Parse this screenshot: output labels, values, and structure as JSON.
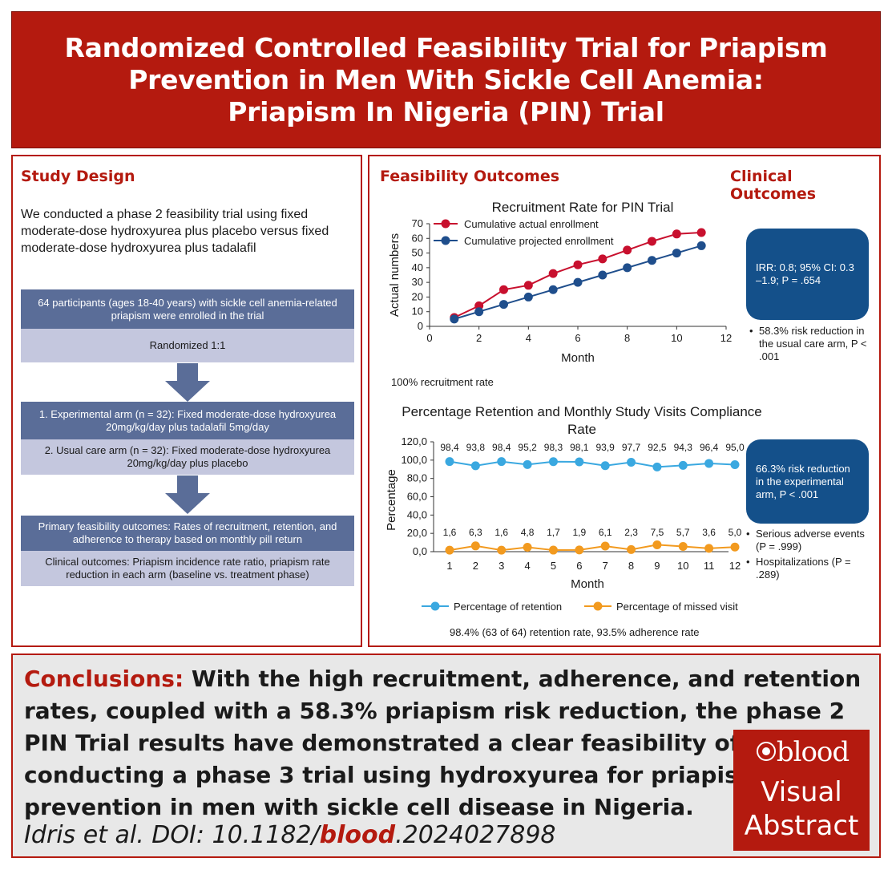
{
  "title": {
    "line1": "Randomized Controlled Feasibility Trial for Priapism",
    "line2": "Prevention in Men With Sickle Cell Anemia:",
    "line3": "Priapism In Nigeria (PIN) Trial"
  },
  "study_design": {
    "heading": "Study Design",
    "description": "We conducted a phase 2 feasibility trial using fixed moderate-dose hydroxyurea plus placebo versus fixed moderate-dose hydroxyurea plus tadalafil",
    "box_participants": "64 participants (ages 18-40 years) with sickle cell anemia-related priapism were enrolled in the trial",
    "box_randomized": "Randomized 1:1",
    "box_experimental": "1. Experimental arm (n = 32): Fixed moderate-dose hydroxyurea 20mg/kg/day plus tadalafil 5mg/day",
    "box_usual": "2. Usual care arm (n = 32): Fixed moderate-dose hydroxyurea 20mg/kg/day plus placebo",
    "box_primary": "Primary feasibility outcomes: Rates of recruitment, retention, and adherence to therapy based on monthly pill return",
    "box_clinical": "Clinical outcomes: Priapism incidence rate ratio, priapism rate reduction in each arm (baseline vs. treatment phase)"
  },
  "outcomes": {
    "feasibility_heading": "Feasibility Outcomes",
    "clinical_heading": "Clinical Outcomes",
    "recruitment_note": "100% recruitment rate",
    "retention_note": "98.4% (63 of 64) retention rate, 93.5% adherence rate",
    "callout1": "IRR: 0.8; 95% CI: 0.3 –1.9; P = .654",
    "bullets1": [
      "58.3% risk reduction in the usual care arm, P < .001"
    ],
    "callout2": "66.3% risk reduction in the experimental arm, P < .001",
    "bullets2": [
      "Serious adverse events (P = .999)",
      "Hospitalizations (P = .289)"
    ]
  },
  "chart_data": [
    {
      "type": "line",
      "title": "Recruitment Rate for PIN Trial",
      "xlabel": "Month",
      "ylabel": "Actual numbers",
      "xlim": [
        0,
        12
      ],
      "ylim": [
        0,
        70
      ],
      "xticks": [
        0,
        2,
        4,
        6,
        8,
        10,
        12
      ],
      "yticks": [
        0,
        10,
        20,
        30,
        40,
        50,
        60,
        70
      ],
      "legend_position": "top-left",
      "series": [
        {
          "name": "Cumulative actual enrollment",
          "color": "#c8102e",
          "x": [
            1,
            2,
            3,
            4,
            5,
            6,
            7,
            8,
            9,
            10,
            11
          ],
          "values": [
            6,
            14,
            25,
            28,
            36,
            42,
            46,
            52,
            58,
            63,
            64
          ]
        },
        {
          "name": "Cumulative projected enrollment",
          "color": "#1f4e8c",
          "x": [
            1,
            2,
            3,
            4,
            5,
            6,
            7,
            8,
            9,
            10,
            11
          ],
          "values": [
            5,
            10,
            15,
            20,
            25,
            30,
            35,
            40,
            45,
            50,
            55
          ]
        }
      ]
    },
    {
      "type": "line",
      "title": "Percentage Retention and Monthly Study Visits Compliance Rate",
      "xlabel": "Month",
      "ylabel": "Percentage",
      "categories": [
        "1",
        "2",
        "3",
        "4",
        "5",
        "6",
        "7",
        "8",
        "9",
        "10",
        "11",
        "12"
      ],
      "ylim": [
        0,
        120
      ],
      "yticks": [
        "0,0",
        "20,0",
        "40,0",
        "60,0",
        "80,0",
        "100,0",
        "120,0"
      ],
      "legend_position": "bottom",
      "series": [
        {
          "name": "Percentage of retention",
          "color": "#3aa8e0",
          "values": [
            98.4,
            93.8,
            98.4,
            95.2,
            98.3,
            98.1,
            93.9,
            97.7,
            92.5,
            94.3,
            96.4,
            95.0
          ],
          "labels": [
            "98,4",
            "93,8",
            "98,4",
            "95,2",
            "98,3",
            "98,1",
            "93,9",
            "97,7",
            "92,5",
            "94,3",
            "96,4",
            "95,0"
          ]
        },
        {
          "name": "Percentage of missed visit",
          "color": "#f29a1f",
          "values": [
            1.6,
            6.3,
            1.6,
            4.8,
            1.7,
            1.9,
            6.1,
            2.3,
            7.5,
            5.7,
            3.6,
            5.0
          ],
          "labels": [
            "1,6",
            "6,3",
            "1,6",
            "4,8",
            "1,7",
            "1,9",
            "6,1",
            "2,3",
            "7,5",
            "5,7",
            "3,6",
            "5,0"
          ]
        }
      ]
    }
  ],
  "conclusions": {
    "label": "Conclusions:",
    "text": "With the high recruitment, adherence, and retention rates, coupled with a 58.3% priapism risk reduction, the phase 2 PIN Trial results have demonstrated a clear feasibility of conducting a phase 3 trial using hydroxyurea for priapism prevention in men with sickle cell disease in Nigeria.",
    "citation_prefix": "Idris et al. DOI: 10.1182/",
    "citation_blood": "blood",
    "citation_suffix": ".2024027898"
  },
  "logo": {
    "blood": "blood",
    "visual": "Visual",
    "abstract": "Abstract"
  },
  "colors": {
    "brand_red": "#b41a0f",
    "box_dark": "#5a6d98",
    "box_light": "#c4c7de",
    "callout_blue": "#14508a"
  }
}
